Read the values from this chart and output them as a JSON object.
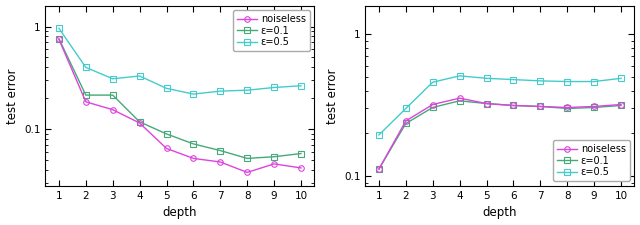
{
  "left": {
    "depths": [
      1,
      2,
      3,
      4,
      5,
      6,
      7,
      8,
      9,
      10
    ],
    "noiseless": [
      0.75,
      0.185,
      0.155,
      0.115,
      0.065,
      0.052,
      0.048,
      0.038,
      0.046,
      0.042
    ],
    "eps01": [
      0.76,
      0.215,
      0.215,
      0.118,
      0.09,
      0.072,
      0.062,
      0.052,
      0.054,
      0.058
    ],
    "eps05": [
      0.96,
      0.4,
      0.31,
      0.33,
      0.25,
      0.22,
      0.235,
      0.24,
      0.255,
      0.265
    ],
    "ylim": [
      0.028,
      1.6
    ],
    "legend_loc": "upper right"
  },
  "right": {
    "depths": [
      1,
      2,
      3,
      4,
      5,
      6,
      7,
      8,
      9,
      10
    ],
    "noiseless": [
      0.112,
      0.245,
      0.32,
      0.355,
      0.325,
      0.315,
      0.31,
      0.305,
      0.31,
      0.32
    ],
    "eps01": [
      0.112,
      0.235,
      0.305,
      0.34,
      0.325,
      0.315,
      0.31,
      0.3,
      0.305,
      0.315
    ],
    "eps05": [
      0.195,
      0.3,
      0.46,
      0.51,
      0.49,
      0.48,
      0.47,
      0.465,
      0.465,
      0.49
    ],
    "ylim": [
      0.085,
      1.6
    ],
    "legend_loc": "lower right"
  },
  "color_noiseless": "#dd44dd",
  "color_eps01": "#44aa77",
  "color_eps05": "#44cccc",
  "xlabel": "depth",
  "ylabel": "test error",
  "label_noiseless": "noiseless",
  "label_eps01": "ε=0.1",
  "label_eps05": "ε=0.5"
}
